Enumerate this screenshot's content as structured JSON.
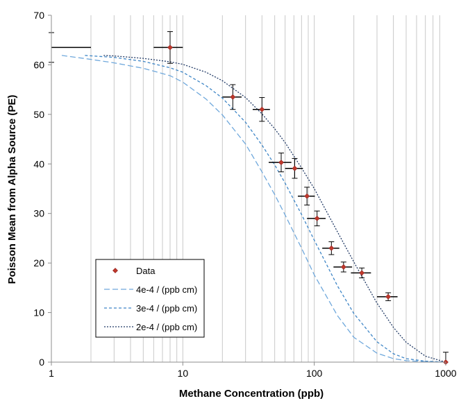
{
  "chart_data": {
    "type": "scatter",
    "title": "",
    "xlabel": "Methane Concentration (ppb)",
    "ylabel": "Poisson Mean from Alpha Source (PE)",
    "x_scale": "log",
    "xlim": [
      1,
      1000
    ],
    "ylim": [
      0,
      70
    ],
    "x_ticks": [
      1,
      10,
      100,
      1000
    ],
    "x_tick_labels": [
      "1",
      "10",
      "100",
      "1000"
    ],
    "y_ticks": [
      0,
      10,
      20,
      30,
      40,
      50,
      60,
      70
    ],
    "y_tick_labels": [
      "0",
      "10",
      "20",
      "30",
      "40",
      "50",
      "60",
      "70"
    ],
    "grid": "vertical-minor-log",
    "legend_position": "lower-left",
    "colors": {
      "data_marker": "#c0392b",
      "curve_4e4": "#6fa8dc",
      "curve_3e4": "#3d85c6",
      "curve_2e4": "#1f3864",
      "grid": "#c8c8c8"
    },
    "series": [
      {
        "name": "Data",
        "kind": "points",
        "x": [
          1,
          8,
          24,
          40,
          56,
          71,
          88,
          105,
          135,
          167,
          230,
          365,
          1000
        ],
        "y": [
          63.5,
          63.5,
          53.5,
          51.0,
          40.3,
          39.1,
          33.5,
          29.0,
          23.0,
          19.2,
          18.0,
          13.2,
          0.0
        ],
        "x_err_low": [
          0,
          2,
          4,
          6,
          11,
          11,
          13,
          17,
          20,
          27,
          40,
          65,
          0
        ],
        "x_err_high": [
          1,
          2,
          4,
          6,
          11,
          11,
          13,
          17,
          20,
          27,
          40,
          65,
          0
        ],
        "y_err": [
          3.0,
          3.2,
          2.5,
          2.4,
          1.9,
          2.0,
          1.8,
          1.5,
          1.3,
          1.0,
          1.0,
          0.8,
          2.0
        ]
      },
      {
        "name": "4e-4 / (ppb cm)",
        "kind": "curve",
        "style": "long-dash",
        "x": [
          1.2,
          2,
          3,
          5,
          8,
          10,
          15,
          20,
          30,
          40,
          50,
          60,
          80,
          100,
          150,
          200,
          300,
          400,
          500,
          700,
          1000
        ],
        "y": [
          61.9,
          61.1,
          60.4,
          59.3,
          57.8,
          56.5,
          53.1,
          49.9,
          44.0,
          38.4,
          33.8,
          29.7,
          23.0,
          17.6,
          9.4,
          5.0,
          1.8,
          0.7,
          0.3,
          0.1,
          0.0
        ]
      },
      {
        "name": "3e-4 / (ppb cm)",
        "kind": "curve",
        "style": "short-dash",
        "x": [
          1.8,
          3,
          5,
          8,
          10,
          15,
          20,
          30,
          40,
          50,
          60,
          80,
          100,
          150,
          200,
          300,
          400,
          500,
          700,
          1000
        ],
        "y": [
          61.9,
          61.5,
          60.7,
          59.4,
          58.5,
          55.8,
          53.3,
          48.4,
          43.8,
          39.8,
          36.1,
          29.8,
          24.6,
          15.4,
          9.8,
          4.1,
          1.7,
          0.7,
          0.2,
          0.0
        ]
      },
      {
        "name": "2e-4 / (ppb cm)",
        "kind": "curve",
        "style": "dotted",
        "x": [
          2.5,
          3,
          5,
          8,
          10,
          15,
          20,
          30,
          40,
          50,
          60,
          80,
          100,
          150,
          200,
          300,
          400,
          500,
          700,
          1000
        ],
        "y": [
          61.9,
          61.8,
          61.3,
          60.6,
          60.1,
          58.5,
          56.8,
          53.4,
          50.1,
          47.1,
          44.3,
          39.2,
          35.0,
          26.3,
          20.2,
          11.9,
          7.0,
          4.0,
          1.2,
          0.0
        ]
      }
    ]
  }
}
